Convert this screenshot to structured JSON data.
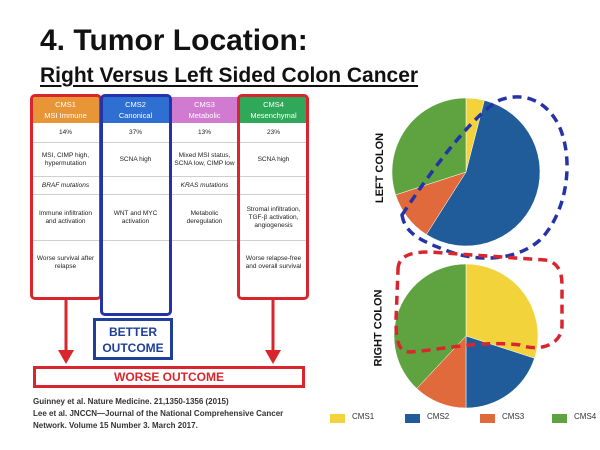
{
  "slide": {
    "title": "4. Tumor Location:",
    "subtitle": "Right Versus Left Sided Colon Cancer"
  },
  "subtypes": [
    {
      "name": "CMS1",
      "sub": "MSI Immune",
      "color": "#e89538",
      "pct": "14%",
      "features": "MSI, CIMP high, hypermutation",
      "mutation": "BRAF mutations",
      "pathway": "Immune infiltration and activation",
      "survival": "Worse survival after relapse"
    },
    {
      "name": "CMS2",
      "sub": "Canonical",
      "color": "#2f6fd1",
      "pct": "37%",
      "features": "SCNA high",
      "mutation": "",
      "pathway": "WNT and MYC activation",
      "survival": ""
    },
    {
      "name": "CMS3",
      "sub": "Metabolic",
      "color": "#d07ad0",
      "pct": "13%",
      "features": "Mixed MSI status, SCNA low, CIMP low",
      "mutation": "KRAS mutations",
      "pathway": "Metabolic deregulation",
      "survival": ""
    },
    {
      "name": "CMS4",
      "sub": "Mesenchymal",
      "color": "#30a85a",
      "pct": "23%",
      "features": "SCNA high",
      "mutation": "",
      "pathway": "Stromal infiltration, TGF-β activation, angiogenesis",
      "survival": "Worse relapse-free and overall survival"
    }
  ],
  "outcomes": {
    "better": "BETTER OUTCOME",
    "worse": "WORSE OUTCOME"
  },
  "citations": {
    "line1": "Guinney et al. Nature Medicine. 21,1350-1356 (2015)",
    "line2": "Lee et al. JNCCN—Journal of the National Comprehensive Cancer",
    "line3": "Network. Volume 15 Number 3. March 2017."
  },
  "labels": {
    "left": "LEFT COLON",
    "right": "RIGHT COLON"
  },
  "colors": {
    "CMS1": "#f2d33b",
    "CMS2": "#1f5c99",
    "CMS3": "#e06a3b",
    "CMS4": "#5ea33f",
    "highlight_blue": "#2433a8",
    "highlight_red": "#d9262e"
  },
  "chart_data": [
    {
      "type": "pie",
      "title": "LEFT COLON",
      "categories": [
        "CMS1",
        "CMS2",
        "CMS3",
        "CMS4"
      ],
      "values": [
        4,
        55,
        11,
        30
      ]
    },
    {
      "type": "pie",
      "title": "RIGHT COLON",
      "categories": [
        "CMS1",
        "CMS2",
        "CMS3",
        "CMS4"
      ],
      "values": [
        30,
        20,
        12,
        38
      ]
    }
  ],
  "legend": [
    "CMS1",
    "CMS2",
    "CMS3",
    "CMS4"
  ]
}
